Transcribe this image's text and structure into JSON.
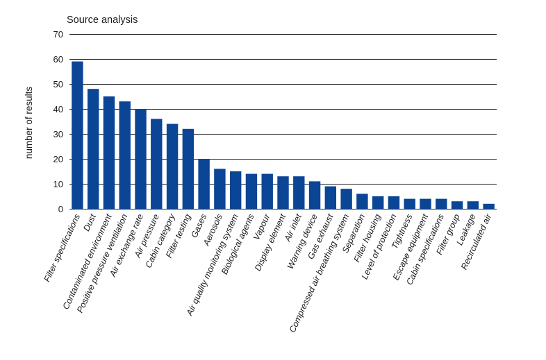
{
  "chart_data": {
    "type": "bar",
    "title": "Source analysis",
    "xlabel": "",
    "ylabel": "number of results",
    "ylim": [
      0,
      70
    ],
    "yticks": [
      0,
      10,
      20,
      30,
      40,
      50,
      60,
      70
    ],
    "grid": true,
    "bar_color": "#0b4596",
    "categories": [
      "Filter specifications",
      "Dust",
      "Contaminated environment",
      "Positive pressure ventilation",
      "Air exchange rate",
      "Air pressure",
      "Cabin category",
      "Filter testing",
      "Gases",
      "Aerosols",
      "Air quality monitoring system",
      "Biological agents",
      "Vapour",
      "Display element",
      "Air inlet",
      "Warning device",
      "Gas exhaust",
      "Compressed air breathing system",
      "Separation",
      "Filter housing",
      "Level of protection",
      "Tightness",
      "Escape equipment",
      "Cabin specifications",
      "Filter group",
      "Leakage",
      "Recirculated air"
    ],
    "values": [
      59,
      48,
      45,
      43,
      40,
      36,
      34,
      32,
      20,
      16,
      15,
      14,
      14,
      13,
      13,
      11,
      9,
      8,
      6,
      5,
      5,
      4,
      4,
      4,
      3,
      3,
      2
    ]
  }
}
